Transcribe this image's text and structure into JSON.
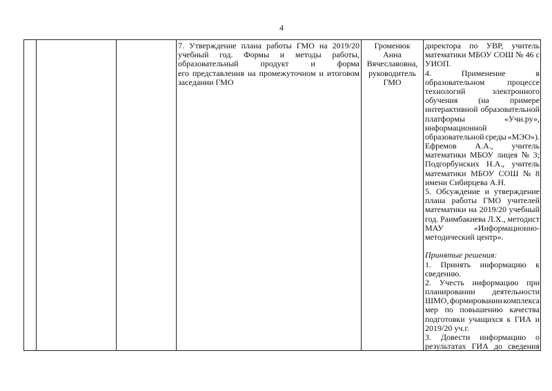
{
  "page_number": "4",
  "row": {
    "topic_lines": [
      {
        "t": "7. Утверждение плана работы ГМО на 2019/20",
        "a": "j"
      },
      {
        "t": "учебный год. Формы и методы работы,",
        "a": "j"
      },
      {
        "t": "образовательный продукт и форма",
        "a": "j"
      },
      {
        "t": "его представления на промежуточном и итоговом",
        "a": "j"
      },
      {
        "t": "заседании ГМО",
        "a": "l"
      }
    ],
    "responsible_lines": [
      "Громенюк",
      "Анна",
      "Вячеславовна,",
      "руководитель",
      "ГМО"
    ],
    "result_lines": [
      {
        "t": "директора по УВР, учитель",
        "a": "j"
      },
      {
        "t": "математики МБОУ СОШ № 46 с",
        "a": "j"
      },
      {
        "t": "УИОП.",
        "a": "l"
      },
      {
        "t": "4. Применение в",
        "a": "j"
      },
      {
        "t": "образовательном процессе",
        "a": "j"
      },
      {
        "t": "технологий электронного",
        "a": "j"
      },
      {
        "t": "обучения (на примере",
        "a": "j"
      },
      {
        "t": "интерактивной образовательной",
        "a": "j"
      },
      {
        "t": "платформы «Учи.ру»,",
        "a": "j"
      },
      {
        "t": "информационной",
        "a": "l"
      },
      {
        "t": "образовательной среды «МЭО»).",
        "a": "j"
      },
      {
        "t": "Ефремов А.А., учитель",
        "a": "j"
      },
      {
        "t": "математики МБОУ лицея № 3;",
        "a": "j"
      },
      {
        "t": "Подгорбунских Н.А., учитель",
        "a": "j"
      },
      {
        "t": "математики МБОУ СОШ № 8",
        "a": "j"
      },
      {
        "t": "имени Сибирцева А.Н.",
        "a": "l"
      },
      {
        "t": "5. Обсуждение и утверждение",
        "a": "j"
      },
      {
        "t": "плана работы ГМО учителей",
        "a": "j"
      },
      {
        "t": "математики на 2019/20 учебный",
        "a": "j"
      },
      {
        "t": "год. Раимбакиева Л.Х., методист",
        "a": "j"
      },
      {
        "t": "МАУ «Информационно-",
        "a": "j"
      },
      {
        "t": "методический центр».",
        "a": "l"
      },
      {
        "t": "",
        "a": "l"
      },
      {
        "t": "Принятые решения:",
        "a": "l i"
      },
      {
        "t": "1. Принять информацию к",
        "a": "j"
      },
      {
        "t": "сведению.",
        "a": "l"
      },
      {
        "t": "2. Учесть информацию при",
        "a": "j"
      },
      {
        "t": "планировании деятельности",
        "a": "j"
      },
      {
        "t": "ШМО, формировании комплекса",
        "a": "j"
      },
      {
        "t": "мер по повышению качества",
        "a": "j"
      },
      {
        "t": "подготовки учащихся к ГИА и",
        "a": "j"
      },
      {
        "t": "2019/20 уч.г.",
        "a": "l"
      },
      {
        "t": "3. Довести информацию о",
        "a": "j"
      },
      {
        "t": "результатах ГИА до сведения",
        "a": "j"
      }
    ]
  }
}
